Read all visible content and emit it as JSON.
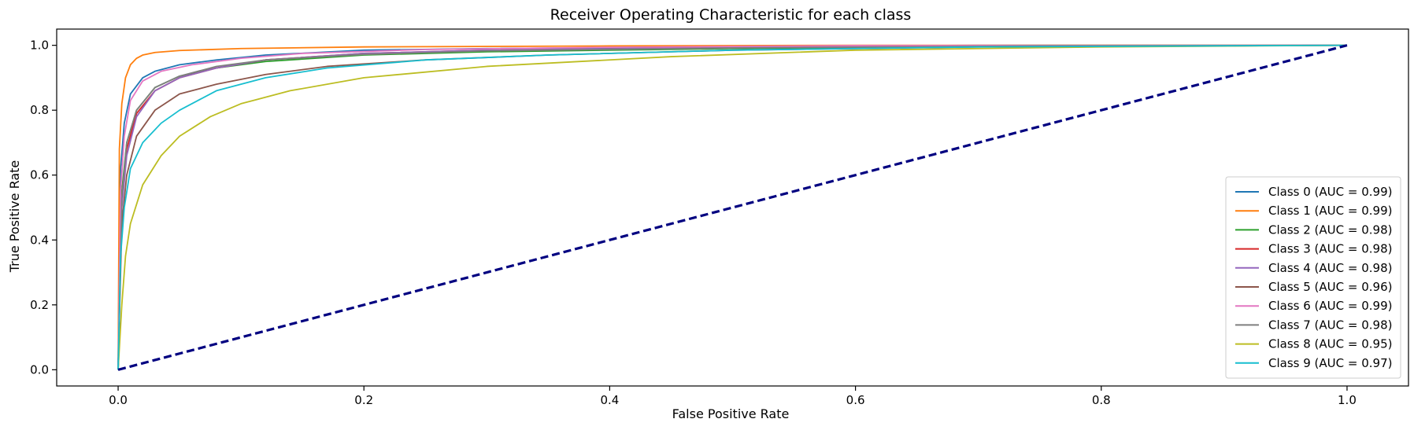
{
  "chart_data": {
    "type": "line",
    "title": "Receiver Operating Characteristic for each class",
    "xlabel": "False Positive Rate",
    "ylabel": "True Positive Rate",
    "xlim": [
      -0.05,
      1.05
    ],
    "ylim": [
      -0.05,
      1.05
    ],
    "xticks": [
      0.0,
      0.2,
      0.4,
      0.6,
      0.8,
      1.0
    ],
    "xtick_labels": [
      "0.0",
      "0.2",
      "0.4",
      "0.6",
      "0.8",
      "1.0"
    ],
    "yticks": [
      0.0,
      0.2,
      0.4,
      0.6,
      0.8,
      1.0
    ],
    "ytick_labels": [
      "0.0",
      "0.2",
      "0.4",
      "0.6",
      "0.8",
      "1.0"
    ],
    "grid": false,
    "legend_position": "lower-right",
    "series": [
      {
        "name": "Class 0 (AUC = 0.99)",
        "color": "#1f77b4",
        "x": [
          0,
          0.002,
          0.005,
          0.01,
          0.02,
          0.03,
          0.05,
          0.08,
          0.12,
          0.2,
          0.3,
          0.5,
          0.7,
          1.0
        ],
        "y": [
          0,
          0.62,
          0.76,
          0.85,
          0.9,
          0.92,
          0.94,
          0.955,
          0.97,
          0.985,
          0.99,
          0.995,
          1.0,
          1.0
        ]
      },
      {
        "name": "Class 1 (AUC = 0.99)",
        "color": "#ff7f0e",
        "x": [
          0,
          0.001,
          0.003,
          0.006,
          0.01,
          0.015,
          0.02,
          0.03,
          0.05,
          0.1,
          0.2,
          0.4,
          0.6,
          1.0
        ],
        "y": [
          0,
          0.68,
          0.82,
          0.9,
          0.94,
          0.96,
          0.97,
          0.978,
          0.984,
          0.99,
          0.995,
          0.998,
          1.0,
          1.0
        ]
      },
      {
        "name": "Class 2 (AUC = 0.98)",
        "color": "#2ca02c",
        "x": [
          0,
          0.003,
          0.007,
          0.015,
          0.03,
          0.05,
          0.08,
          0.12,
          0.2,
          0.3,
          0.5,
          0.75,
          1.0
        ],
        "y": [
          0,
          0.55,
          0.7,
          0.8,
          0.87,
          0.905,
          0.93,
          0.95,
          0.97,
          0.98,
          0.99,
          0.998,
          1.0
        ]
      },
      {
        "name": "Class 3 (AUC = 0.98)",
        "color": "#d62728",
        "x": [
          0,
          0.003,
          0.007,
          0.015,
          0.03,
          0.05,
          0.08,
          0.12,
          0.2,
          0.3,
          0.5,
          0.75,
          1.0
        ],
        "y": [
          0,
          0.52,
          0.68,
          0.79,
          0.86,
          0.9,
          0.93,
          0.955,
          0.975,
          0.985,
          0.993,
          0.998,
          1.0
        ]
      },
      {
        "name": "Class 4 (AUC = 0.98)",
        "color": "#9467bd",
        "x": [
          0,
          0.003,
          0.007,
          0.015,
          0.03,
          0.05,
          0.08,
          0.12,
          0.2,
          0.3,
          0.5,
          0.75,
          1.0
        ],
        "y": [
          0,
          0.5,
          0.66,
          0.78,
          0.86,
          0.9,
          0.93,
          0.955,
          0.975,
          0.985,
          0.993,
          0.998,
          1.0
        ]
      },
      {
        "name": "Class 5 (AUC = 0.96)",
        "color": "#8c564b",
        "x": [
          0,
          0.003,
          0.007,
          0.015,
          0.03,
          0.05,
          0.08,
          0.12,
          0.17,
          0.25,
          0.35,
          0.5,
          0.7,
          1.0
        ],
        "y": [
          0,
          0.45,
          0.6,
          0.72,
          0.8,
          0.85,
          0.88,
          0.91,
          0.935,
          0.955,
          0.97,
          0.985,
          0.995,
          1.0
        ]
      },
      {
        "name": "Class 6 (AUC = 0.99)",
        "color": "#e377c2",
        "x": [
          0,
          0.002,
          0.005,
          0.01,
          0.02,
          0.035,
          0.06,
          0.1,
          0.15,
          0.25,
          0.4,
          0.6,
          1.0
        ],
        "y": [
          0,
          0.55,
          0.72,
          0.83,
          0.89,
          0.92,
          0.94,
          0.96,
          0.975,
          0.987,
          0.994,
          0.999,
          1.0
        ]
      },
      {
        "name": "Class 7 (AUC = 0.98)",
        "color": "#7f7f7f",
        "x": [
          0,
          0.003,
          0.007,
          0.015,
          0.03,
          0.05,
          0.08,
          0.12,
          0.2,
          0.3,
          0.5,
          0.75,
          1.0
        ],
        "y": [
          0,
          0.53,
          0.7,
          0.8,
          0.87,
          0.905,
          0.935,
          0.955,
          0.972,
          0.983,
          0.992,
          0.998,
          1.0
        ]
      },
      {
        "name": "Class 8 (AUC = 0.95)",
        "color": "#bcbd22",
        "x": [
          0,
          0.003,
          0.006,
          0.01,
          0.02,
          0.035,
          0.05,
          0.075,
          0.1,
          0.14,
          0.2,
          0.3,
          0.45,
          0.6,
          0.8,
          1.0
        ],
        "y": [
          0,
          0.2,
          0.35,
          0.45,
          0.57,
          0.66,
          0.72,
          0.78,
          0.82,
          0.86,
          0.9,
          0.935,
          0.965,
          0.985,
          0.995,
          1.0
        ]
      },
      {
        "name": "Class 9 (AUC = 0.97)",
        "color": "#17becf",
        "x": [
          0,
          0.002,
          0.005,
          0.01,
          0.02,
          0.035,
          0.05,
          0.08,
          0.12,
          0.17,
          0.25,
          0.35,
          0.5,
          0.7,
          1.0
        ],
        "y": [
          0,
          0.35,
          0.5,
          0.62,
          0.7,
          0.76,
          0.8,
          0.86,
          0.9,
          0.93,
          0.955,
          0.97,
          0.985,
          0.995,
          1.0
        ]
      },
      {
        "name": "",
        "color": "#000080",
        "dashed": true,
        "x": [
          0,
          1.0
        ],
        "y": [
          0,
          1.0
        ]
      }
    ]
  }
}
